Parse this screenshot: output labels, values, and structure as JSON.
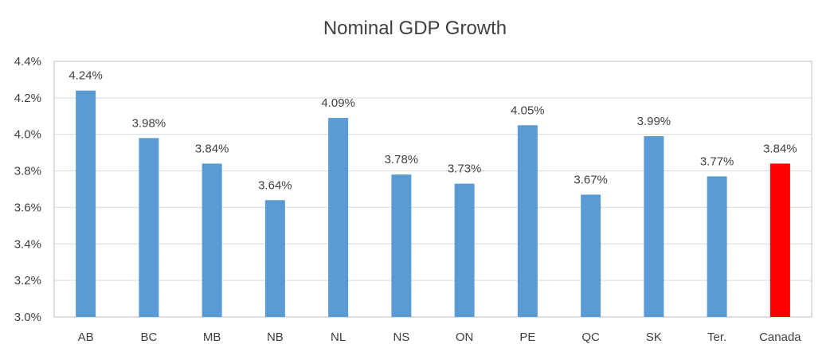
{
  "chart_data": {
    "type": "bar",
    "title": "Nominal GDP Growth",
    "xlabel": "",
    "ylabel": "",
    "ylim": [
      3.0,
      4.4
    ],
    "ytick_step": 0.2,
    "ytick_labels": [
      "3.0%",
      "3.2%",
      "3.4%",
      "3.6%",
      "3.8%",
      "4.0%",
      "4.2%",
      "4.4%"
    ],
    "grid": true,
    "categories": [
      "AB",
      "BC",
      "MB",
      "NB",
      "NL",
      "NS",
      "ON",
      "PE",
      "QC",
      "SK",
      "Ter.",
      "Canada"
    ],
    "values": [
      4.24,
      3.98,
      3.84,
      3.64,
      4.09,
      3.78,
      3.73,
      4.05,
      3.67,
      3.99,
      3.77,
      3.84
    ],
    "data_labels": [
      "4.24%",
      "3.98%",
      "3.84%",
      "3.64%",
      "4.09%",
      "3.78%",
      "3.73%",
      "4.05%",
      "3.67%",
      "3.99%",
      "3.77%",
      "3.84%"
    ],
    "colors": {
      "default": "#5b9bd5",
      "highlight": "#ff0000"
    },
    "highlight_category": "Canada"
  }
}
